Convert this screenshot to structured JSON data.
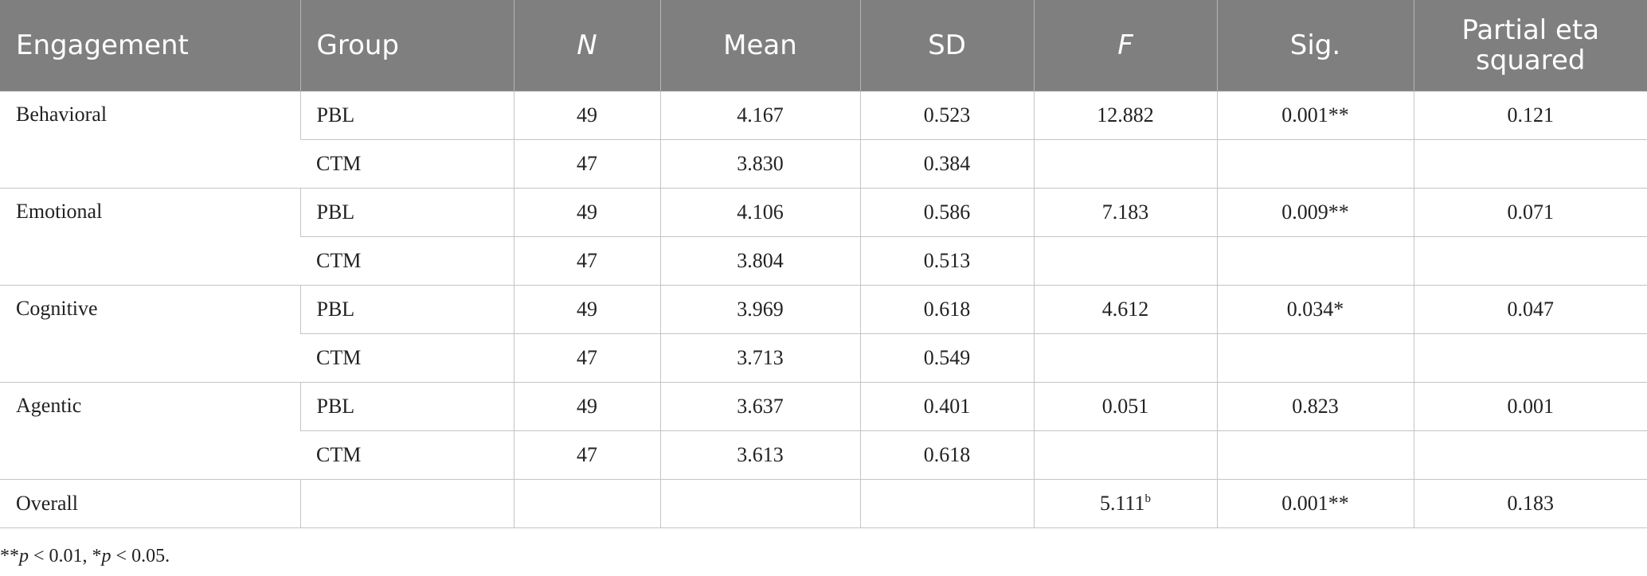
{
  "table": {
    "headers": [
      "Engagement",
      "Group",
      "N",
      "Mean",
      "SD",
      "F",
      "Sig.",
      "Partial eta squared"
    ],
    "groups": [
      {
        "engagement": "Behavioral",
        "rows": [
          {
            "group": "PBL",
            "n": "49",
            "mean": "4.167",
            "sd": "0.523",
            "f": "12.882",
            "sig": "0.001**",
            "eta": "0.121"
          },
          {
            "group": "CTM",
            "n": "47",
            "mean": "3.830",
            "sd": "0.384",
            "f": "",
            "sig": "",
            "eta": ""
          }
        ]
      },
      {
        "engagement": "Emotional",
        "rows": [
          {
            "group": "PBL",
            "n": "49",
            "mean": "4.106",
            "sd": "0.586",
            "f": "7.183",
            "sig": "0.009**",
            "eta": "0.071"
          },
          {
            "group": "CTM",
            "n": "47",
            "mean": "3.804",
            "sd": "0.513",
            "f": "",
            "sig": "",
            "eta": ""
          }
        ]
      },
      {
        "engagement": "Cognitive",
        "rows": [
          {
            "group": "PBL",
            "n": "49",
            "mean": "3.969",
            "sd": "0.618",
            "f": "4.612",
            "sig": "0.034*",
            "eta": "0.047"
          },
          {
            "group": "CTM",
            "n": "47",
            "mean": "3.713",
            "sd": "0.549",
            "f": "",
            "sig": "",
            "eta": ""
          }
        ]
      },
      {
        "engagement": "Agentic",
        "rows": [
          {
            "group": "PBL",
            "n": "49",
            "mean": "3.637",
            "sd": "0.401",
            "f": "0.051",
            "sig": "0.823",
            "eta": "0.001"
          },
          {
            "group": "CTM",
            "n": "47",
            "mean": "3.613",
            "sd": "0.618",
            "f": "",
            "sig": "",
            "eta": ""
          }
        ]
      }
    ],
    "overall": {
      "label": "Overall",
      "f": "5.111",
      "f_sup": "b",
      "sig": "0.001**",
      "eta": "0.183"
    }
  },
  "note": {
    "stars1": "**",
    "p1": "p",
    "rest1": " < 0.01, ",
    "stars2": "*",
    "p2": "p",
    "rest2": " < 0.05."
  }
}
